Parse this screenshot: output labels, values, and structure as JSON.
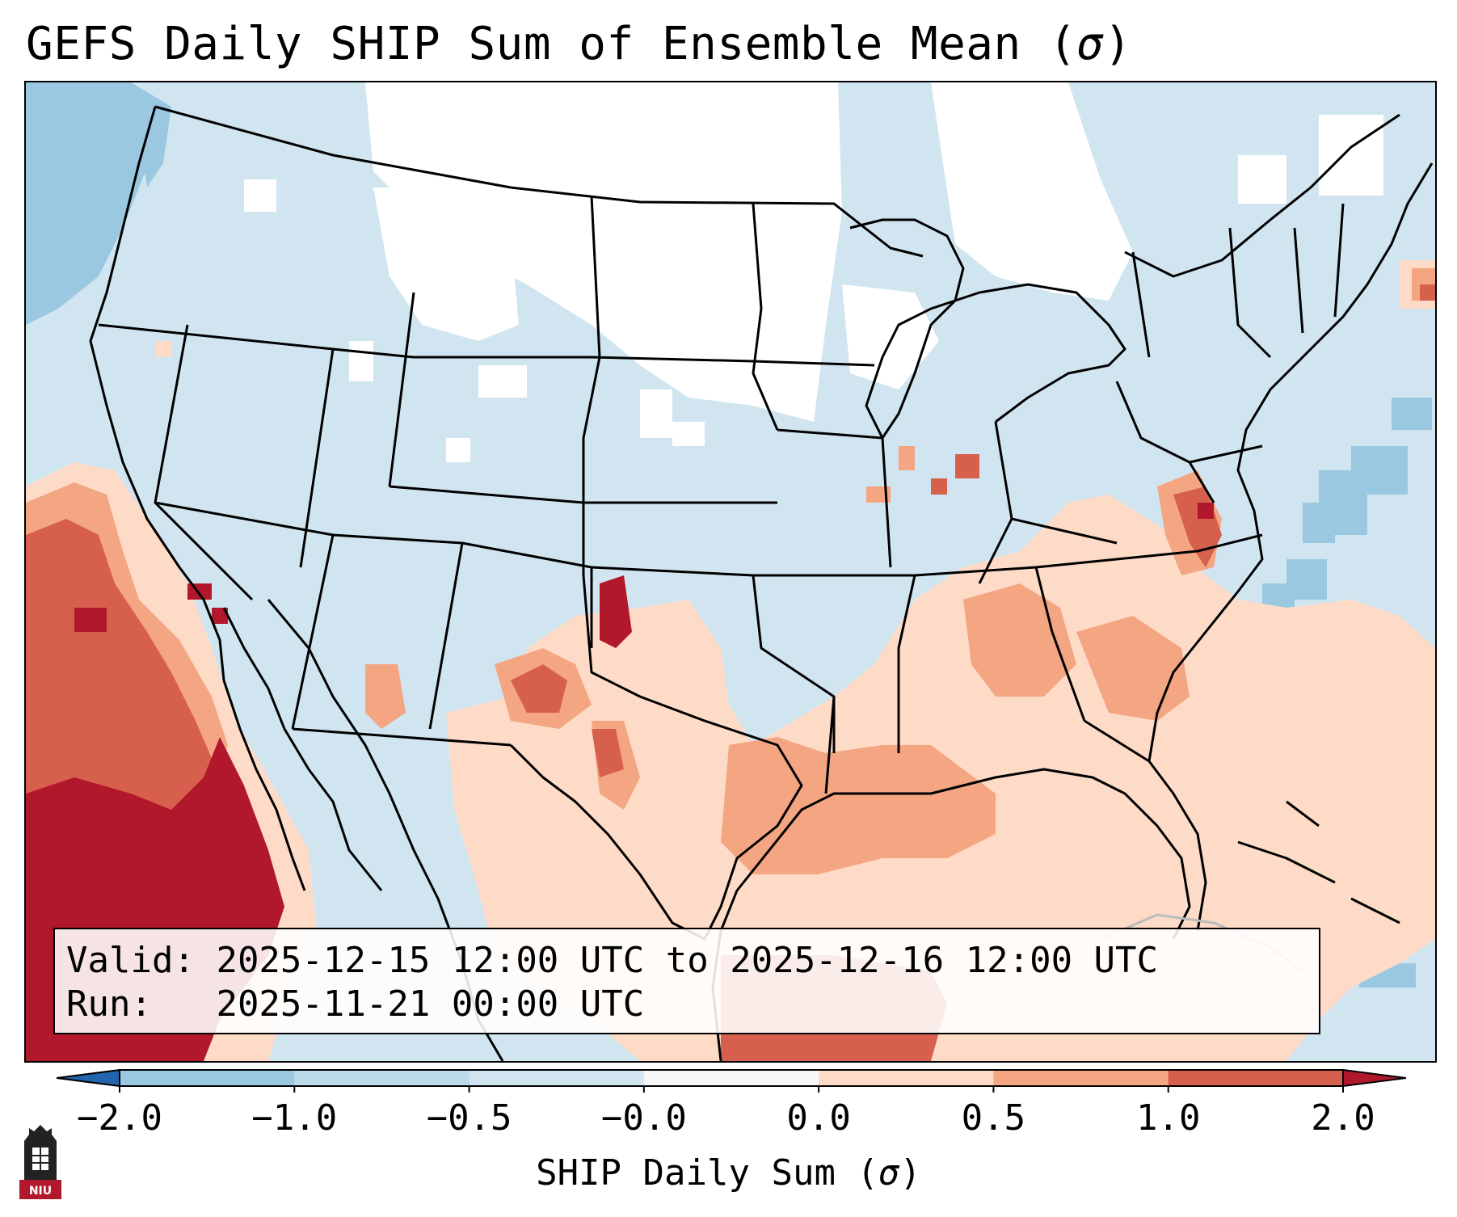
{
  "title": "GEFS Daily SHIP Sum of Ensemble Mean (",
  "title_symbol": "σ",
  "title_close": ")",
  "info": {
    "valid_label": "Valid:",
    "valid_value": "2025-12-15 12:00 UTC to 2025-12-16 12:00 UTC",
    "run_label": "Run:",
    "run_value": "2025-11-21 00:00 UTC"
  },
  "colorbar": {
    "ticks": [
      "−2.0",
      "−1.0",
      "−0.5",
      "−0.0",
      "0.0",
      "0.5",
      "1.0",
      "2.0"
    ],
    "bins": [
      {
        "from": -2.0,
        "to": -1.0,
        "color": "#9ac8e0"
      },
      {
        "from": -1.0,
        "to": -0.5,
        "color": "#bcdbea"
      },
      {
        "from": -0.5,
        "to": -0.0,
        "color": "#d1e5f0"
      },
      {
        "from": -0.0,
        "to": 0.0,
        "color": "#f7f7f7"
      },
      {
        "from": 0.0,
        "to": 0.5,
        "color": "#fddbc7"
      },
      {
        "from": 0.5,
        "to": 1.0,
        "color": "#f4a582"
      },
      {
        "from": 1.0,
        "to": 2.0,
        "color": "#d6604d"
      }
    ],
    "under_color": "#2166ac",
    "over_color": "#b2182b",
    "label": "SHIP Daily Sum (",
    "label_symbol": "σ",
    "label_close": ")"
  },
  "logo": {
    "text": "NIU",
    "color": "#b2182b"
  },
  "colors": {
    "neutral_blue": "#d1e5f0",
    "light_red": "#fddbc7",
    "mid_red": "#f4a582",
    "red": "#d6604d",
    "dark_red": "#b2182b",
    "blue": "#9ac8e0",
    "white": "#ffffff"
  }
}
